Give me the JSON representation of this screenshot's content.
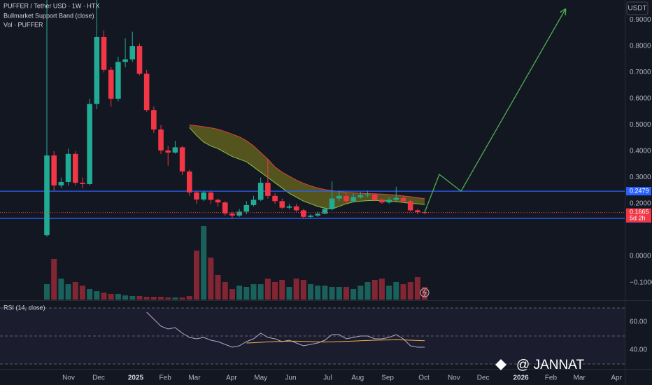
{
  "chart_data": {
    "type": "candlestick",
    "title": "PUFFER / Tether USD · 1W · HTX",
    "band_label": "Bullmarket Support Band (close)",
    "volume_label": "Vol · PUFFER",
    "rsi_label": "RSI (14, close)",
    "currency": "USDT",
    "countdown": "5d 2h",
    "watermark": "@ JANNAT",
    "xlim": [
      -6.575,
      81.06
    ],
    "xticks": [
      {
        "value": 3.04,
        "label": "Nov"
      },
      {
        "value": 7.26,
        "label": "Dec"
      },
      {
        "value": 12.46,
        "label": "2025"
      },
      {
        "value": 16.6,
        "label": "Feb"
      },
      {
        "value": 20.7,
        "label": "Mar"
      },
      {
        "value": 25.9,
        "label": "Apr"
      },
      {
        "value": 30.0,
        "label": "May"
      },
      {
        "value": 34.2,
        "label": "Jun"
      },
      {
        "value": 39.4,
        "label": "Jul"
      },
      {
        "value": 43.6,
        "label": "Aug"
      },
      {
        "value": 47.8,
        "label": "Sep"
      },
      {
        "value": 52.9,
        "label": "Oct"
      },
      {
        "value": 57.1,
        "label": "Nov"
      },
      {
        "value": 61.2,
        "label": "Dec"
      },
      {
        "value": 66.5,
        "label": "2026"
      },
      {
        "value": 70.7,
        "label": "Feb"
      },
      {
        "value": 74.7,
        "label": "Mar"
      },
      {
        "value": 79.9,
        "label": "Apr"
      }
    ],
    "ylim": [
      -0.165,
      0.976
    ],
    "yticks": [
      {
        "value": 0.9,
        "label": "0.9000"
      },
      {
        "value": 0.8,
        "label": "0.8000"
      },
      {
        "value": 0.7,
        "label": "0.7000"
      },
      {
        "value": 0.6,
        "label": "0.6000"
      },
      {
        "value": 0.5,
        "label": "0.5000"
      },
      {
        "value": 0.4,
        "label": "0.4000"
      },
      {
        "value": 0.3,
        "label": "0.3000"
      },
      {
        "value": 0.2,
        "label": "0.2000"
      },
      {
        "value": 0,
        "label": "0.0000"
      },
      {
        "value": -0.1,
        "label": "−0.1000"
      }
    ],
    "up_color": "#22ab94",
    "down_color": "#f23645",
    "open": [
      0.08,
      0.384,
      0.27,
      0.283,
      0.39,
      0.28,
      0.275,
      0.58,
      0.835,
      0.71,
      0.6,
      0.74,
      0.75,
      0.8,
      0.695,
      0.557,
      0.483,
      0.403,
      0.395,
      0.415,
      0.323,
      0.243,
      0.216,
      0.243,
      0.215,
      0.205,
      0.163,
      0.155,
      0.17,
      0.195,
      0.215,
      0.28,
      0.23,
      0.21,
      0.185,
      0.19,
      0.175,
      0.15,
      0.155,
      0.162,
      0.18,
      0.22,
      0.23,
      0.21,
      0.225,
      0.232,
      0.235,
      0.215,
      0.205,
      0.215,
      0.222,
      0.21,
      0.175,
      0.168
    ],
    "high": [
      0.976,
      0.4,
      0.3,
      0.41,
      0.4,
      0.3,
      0.6,
      0.976,
      0.86,
      0.72,
      0.76,
      0.83,
      0.855,
      0.81,
      0.71,
      0.57,
      0.5,
      0.42,
      0.44,
      0.42,
      0.33,
      0.25,
      0.25,
      0.25,
      0.22,
      0.21,
      0.17,
      0.18,
      0.21,
      0.23,
      0.3,
      0.37,
      0.24,
      0.22,
      0.2,
      0.2,
      0.18,
      0.16,
      0.17,
      0.19,
      0.285,
      0.25,
      0.24,
      0.24,
      0.245,
      0.25,
      0.24,
      0.22,
      0.225,
      0.265,
      0.23,
      0.215,
      0.18,
      0.17
    ],
    "low": [
      0.075,
      0.25,
      0.26,
      0.27,
      0.27,
      0.26,
      0.27,
      0.56,
      0.7,
      0.57,
      0.59,
      0.72,
      0.74,
      0.69,
      0.55,
      0.47,
      0.39,
      0.345,
      0.39,
      0.31,
      0.23,
      0.2,
      0.21,
      0.2,
      0.19,
      0.155,
      0.145,
      0.15,
      0.16,
      0.19,
      0.21,
      0.22,
      0.2,
      0.18,
      0.18,
      0.17,
      0.145,
      0.145,
      0.15,
      0.16,
      0.175,
      0.21,
      0.2,
      0.205,
      0.22,
      0.225,
      0.21,
      0.2,
      0.2,
      0.21,
      0.205,
      0.17,
      0.16,
      0.16
    ],
    "close": [
      0.384,
      0.27,
      0.283,
      0.39,
      0.28,
      0.275,
      0.58,
      0.835,
      0.71,
      0.6,
      0.74,
      0.75,
      0.8,
      0.695,
      0.557,
      0.483,
      0.403,
      0.395,
      0.415,
      0.323,
      0.243,
      0.216,
      0.243,
      0.215,
      0.205,
      0.163,
      0.155,
      0.17,
      0.195,
      0.215,
      0.28,
      0.23,
      0.21,
      0.185,
      0.19,
      0.175,
      0.15,
      0.155,
      0.162,
      0.18,
      0.22,
      0.23,
      0.21,
      0.225,
      0.232,
      0.235,
      0.215,
      0.205,
      0.215,
      0.222,
      0.21,
      0.175,
      0.168,
      0.1665
    ],
    "band_upper": [
      null,
      null,
      null,
      null,
      null,
      null,
      null,
      null,
      null,
      null,
      null,
      null,
      null,
      null,
      null,
      null,
      null,
      null,
      null,
      null,
      0.5,
      0.497,
      0.493,
      0.489,
      0.484,
      0.475,
      0.465,
      0.455,
      0.44,
      0.42,
      0.395,
      0.37,
      0.34,
      0.32,
      0.305,
      0.29,
      0.278,
      0.268,
      0.26,
      0.254,
      0.25,
      0.247,
      0.244,
      0.242,
      0.24,
      0.239,
      0.238,
      0.237,
      0.235,
      0.233,
      0.23,
      0.227,
      0.223,
      0.22
    ],
    "band_lower": [
      null,
      null,
      null,
      null,
      null,
      null,
      null,
      null,
      null,
      null,
      null,
      null,
      null,
      null,
      null,
      null,
      null,
      null,
      null,
      null,
      0.49,
      0.46,
      0.435,
      0.42,
      0.41,
      0.395,
      0.38,
      0.37,
      0.36,
      0.34,
      0.32,
      0.3,
      0.28,
      0.26,
      0.24,
      0.225,
      0.21,
      0.2,
      0.19,
      0.183,
      0.18,
      0.19,
      0.2,
      0.207,
      0.21,
      0.212,
      0.213,
      0.212,
      0.21,
      0.208,
      0.205,
      0.202,
      0.2,
      0.197
    ],
    "band_upper_color": "#e0443a",
    "band_lower_color": "#8bc34a",
    "band_fill": "#6b6a1e",
    "volume": [
      22,
      58,
      30,
      22,
      25,
      20,
      15,
      12,
      10,
      8,
      8,
      6,
      5,
      5,
      4,
      4,
      4,
      3,
      3,
      3,
      5,
      70,
      105,
      60,
      35,
      25,
      15,
      20,
      18,
      22,
      22,
      30,
      25,
      28,
      18,
      30,
      28,
      22,
      20,
      20,
      18,
      18,
      18,
      15,
      20,
      25,
      28,
      30,
      20,
      25,
      22,
      25,
      32,
      18
    ],
    "vlim": [
      0,
      140
    ],
    "levels": [
      0.2479,
      0.1444
    ],
    "level_color": "#2962ff",
    "projection": {
      "x": [
        53,
        55.05,
        58.1,
        72.7
      ],
      "y": [
        0.168,
        0.312,
        0.248,
        0.939
      ],
      "color": "#4caf50"
    },
    "rsi": [
      null,
      null,
      null,
      null,
      null,
      null,
      null,
      null,
      null,
      null,
      null,
      null,
      null,
      null,
      67,
      62,
      57,
      55,
      56,
      52,
      49,
      48,
      49,
      47,
      46,
      44,
      42,
      43,
      46,
      48,
      52,
      49,
      48,
      46,
      47,
      45,
      43,
      44,
      45,
      47,
      51,
      51,
      48,
      49,
      50,
      50,
      48,
      48,
      49,
      51,
      48,
      43,
      42,
      42
    ],
    "rsi_ma": [
      null,
      null,
      null,
      null,
      null,
      null,
      null,
      null,
      null,
      null,
      null,
      null,
      null,
      null,
      null,
      null,
      null,
      null,
      null,
      null,
      null,
      null,
      null,
      null,
      null,
      null,
      null,
      null,
      45,
      45.2,
      45.5,
      45.8,
      46,
      46.2,
      46.3,
      46.3,
      46.2,
      46,
      45.8,
      45.7,
      45.8,
      46,
      46.2,
      46.4,
      46.6,
      46.8,
      47,
      47.1,
      47.2,
      47.3,
      47.2,
      47,
      46.8,
      46.6
    ],
    "rlim": [
      27.5,
      74.5
    ],
    "rticks": [
      {
        "value": 60,
        "label": "60.00"
      },
      {
        "value": 40,
        "label": "40.00"
      }
    ],
    "rsi_levels": [
      70,
      50,
      30
    ],
    "rsi_color": "#b8a9c9",
    "rsi_ma_color": "#f0b34a"
  }
}
